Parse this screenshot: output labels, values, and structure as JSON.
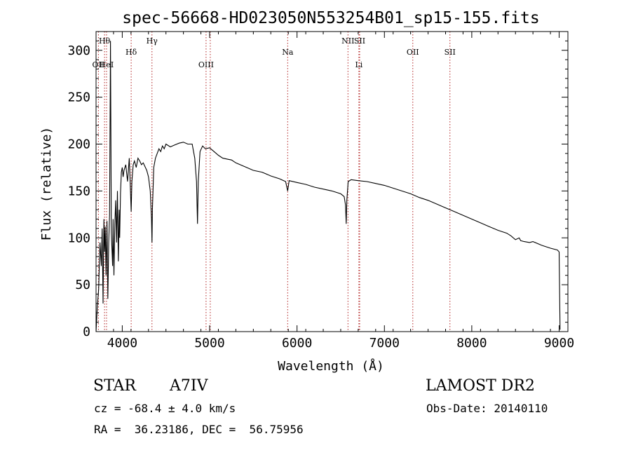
{
  "chart_data": {
    "type": "line",
    "title": "spec-56668-HD023050N553254B01_sp15-155.fits",
    "xlabel": "Wavelength (Å)",
    "ylabel": "Flux (relative)",
    "xlim": [
      3700,
      9100
    ],
    "ylim": [
      0,
      320
    ],
    "xticks": [
      4000,
      5000,
      6000,
      7000,
      8000,
      9000
    ],
    "yticks": [
      0,
      50,
      100,
      150,
      200,
      250,
      300
    ],
    "xtick_labels": [
      "4000",
      "5000",
      "6000",
      "7000",
      "8000",
      "9000"
    ],
    "ytick_labels": [
      "0",
      "50",
      "100",
      "150",
      "200",
      "250",
      "300"
    ],
    "grid": false,
    "line_color": "#000000",
    "marker_color": "#b22222",
    "spectral_lines": [
      {
        "label": "OII",
        "wavelength": 3727,
        "row": "low"
      },
      {
        "label": "HeI",
        "wavelength": 3820,
        "row": "low"
      },
      {
        "label": "Hθ",
        "wavelength": 3797,
        "row": "high"
      },
      {
        "label": "Hδ",
        "wavelength": 4102,
        "row": "mid"
      },
      {
        "label": "Hγ",
        "wavelength": 4340,
        "row": "high"
      },
      {
        "label": "OIII",
        "wavelength": 4959,
        "row": "low"
      },
      {
        "label": "OIII",
        "wavelength": 5007,
        "row": "low",
        "hide_label": true
      },
      {
        "label": "Na",
        "wavelength": 5893,
        "row": "mid"
      },
      {
        "label": "NII",
        "wavelength": 6583,
        "row": "high"
      },
      {
        "label": "SII",
        "wavelength": 6717,
        "row": "high"
      },
      {
        "label": "Li",
        "wavelength": 6708,
        "row": "low"
      },
      {
        "label": "OII",
        "wavelength": 7325,
        "row": "mid"
      },
      {
        "label": "SII",
        "wavelength": 7750,
        "row": "mid"
      }
    ],
    "series": [
      {
        "x": [
          3700,
          3715,
          3730,
          3745,
          3760,
          3770,
          3780,
          3790,
          3797,
          3805,
          3815,
          3825,
          3835,
          3845,
          3855,
          3865,
          3875,
          3885,
          3889,
          3895,
          3905,
          3915,
          3925,
          3935,
          3945,
          3955,
          3965,
          3970,
          3980,
          3990,
          4000,
          4010,
          4020,
          4040,
          4060,
          4080,
          4095,
          4102,
          4110,
          4125,
          4140,
          4160,
          4180,
          4200,
          4220,
          4240,
          4260,
          4280,
          4300,
          4320,
          4335,
          4340,
          4345,
          4360,
          4380,
          4400,
          4420,
          4440,
          4460,
          4480,
          4500,
          4550,
          4600,
          4650,
          4700,
          4750,
          4800,
          4830,
          4850,
          4861,
          4870,
          4890,
          4920,
          4950,
          5000,
          5050,
          5100,
          5150,
          5200,
          5250,
          5300,
          5400,
          5500,
          5600,
          5700,
          5800,
          5870,
          5893,
          5910,
          6000,
          6100,
          6200,
          6300,
          6400,
          6500,
          6540,
          6555,
          6563,
          6570,
          6585,
          6620,
          6700,
          6800,
          6900,
          7000,
          7100,
          7200,
          7300,
          7400,
          7500,
          7600,
          7700,
          7800,
          7900,
          8000,
          8100,
          8200,
          8300,
          8400,
          8450,
          8500,
          8542,
          8560,
          8600,
          8662,
          8700,
          8800,
          8900,
          8980,
          9000,
          9010
        ],
        "y": [
          0,
          28,
          45,
          95,
          70,
          110,
          30,
          120,
          85,
          112,
          60,
          118,
          35,
          95,
          125,
          310,
          105,
          80,
          70,
          120,
          60,
          115,
          140,
          95,
          150,
          75,
          130,
          100,
          148,
          170,
          175,
          165,
          172,
          178,
          160,
          185,
          148,
          128,
          160,
          178,
          182,
          175,
          185,
          182,
          178,
          180,
          176,
          172,
          165,
          150,
          120,
          95,
          130,
          175,
          185,
          190,
          195,
          192,
          198,
          195,
          200,
          197,
          199,
          201,
          202,
          200,
          200,
          185,
          160,
          115,
          160,
          192,
          198,
          195,
          196,
          192,
          188,
          185,
          184,
          183,
          180,
          176,
          172,
          170,
          166,
          163,
          160,
          150,
          161,
          159,
          157,
          154,
          152,
          150,
          147,
          144,
          135,
          115,
          140,
          160,
          162,
          161,
          160,
          158,
          156,
          153,
          150,
          147,
          143,
          140,
          136,
          132,
          128,
          124,
          120,
          116,
          112,
          108,
          105,
          102,
          98,
          100,
          97,
          96,
          95,
          96,
          92,
          89,
          87,
          85,
          2
        ]
      }
    ]
  },
  "info": {
    "object_type": "STAR",
    "subclass": "A7IV",
    "survey": "LAMOST DR2",
    "cz": "cz = -68.4 ± 4.0 km/s",
    "obs_date": "Obs-Date: 20140110",
    "coords": "RA =  36.23186, DEC =  56.75956"
  }
}
